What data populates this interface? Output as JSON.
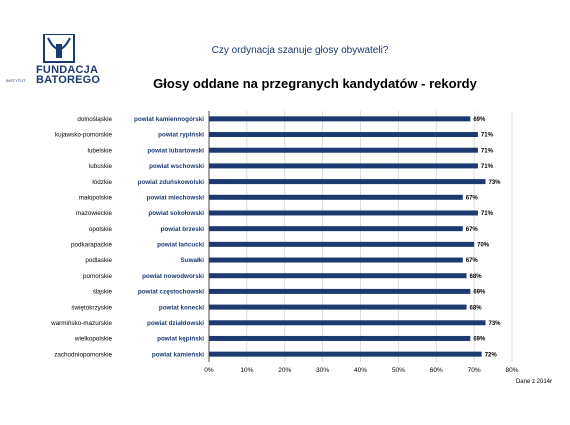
{
  "header": {
    "logo_line1": "FUNDACJA",
    "logo_line2": "BATOREGO",
    "logo_small": "INSTYTUT",
    "subtitle": "Czy ordynacja szanuje głosy obywateli?",
    "title": "Głosy oddane na przegranych kandydatów - rekordy"
  },
  "footnote": "Dane z 2014r",
  "colors": {
    "bar": "#1c3a70",
    "brand": "#1c3a70",
    "label": "#1c3a70",
    "grid": "#d0d0d0"
  },
  "chart_data": {
    "type": "bar",
    "orientation": "horizontal",
    "title": "Głosy oddane na przegranych kandydatów - rekordy",
    "regions": [
      "dolnośląskie",
      "kujawsko-pomorskie",
      "lubelskie",
      "lubuskie",
      "łódzkie",
      "małopolskie",
      "mazowieckie",
      "opolskie",
      "podkarapackie",
      "podlaskie",
      "pomorskie",
      "śląskie",
      "świętokrzyskie",
      "warmińsko-mazurskie",
      "wielkopolskie",
      "zachodniopomorskie"
    ],
    "categories": [
      "powiat kamiennogórski",
      "powiat rypiński",
      "powiat lubartowski",
      "powiat wschowski",
      "powiat zduńskowolski",
      "powiat miechowski",
      "powiat sokołowski",
      "powiat brzeski",
      "powiat łańcucki",
      "Suwałki",
      "powiat nowodworski",
      "powiat częstochowski",
      "powiat konecki",
      "powiat działdowski",
      "powiat kępiński",
      "powiat kamieński"
    ],
    "values": [
      69,
      71,
      71,
      71,
      73,
      67,
      71,
      67,
      70,
      67,
      68,
      69,
      68,
      73,
      69,
      72
    ],
    "value_labels": [
      "69%",
      "71%",
      "71%",
      "71%",
      "73%",
      "67%",
      "71%",
      "67%",
      "70%",
      "67%",
      "68%",
      "69%",
      "68%",
      "73%",
      "69%",
      "72%"
    ],
    "xlim": [
      0,
      80
    ],
    "xticks": [
      "0%",
      "10%",
      "20%",
      "30%",
      "40%",
      "50%",
      "60%",
      "70%",
      "80%"
    ],
    "grid": true
  }
}
